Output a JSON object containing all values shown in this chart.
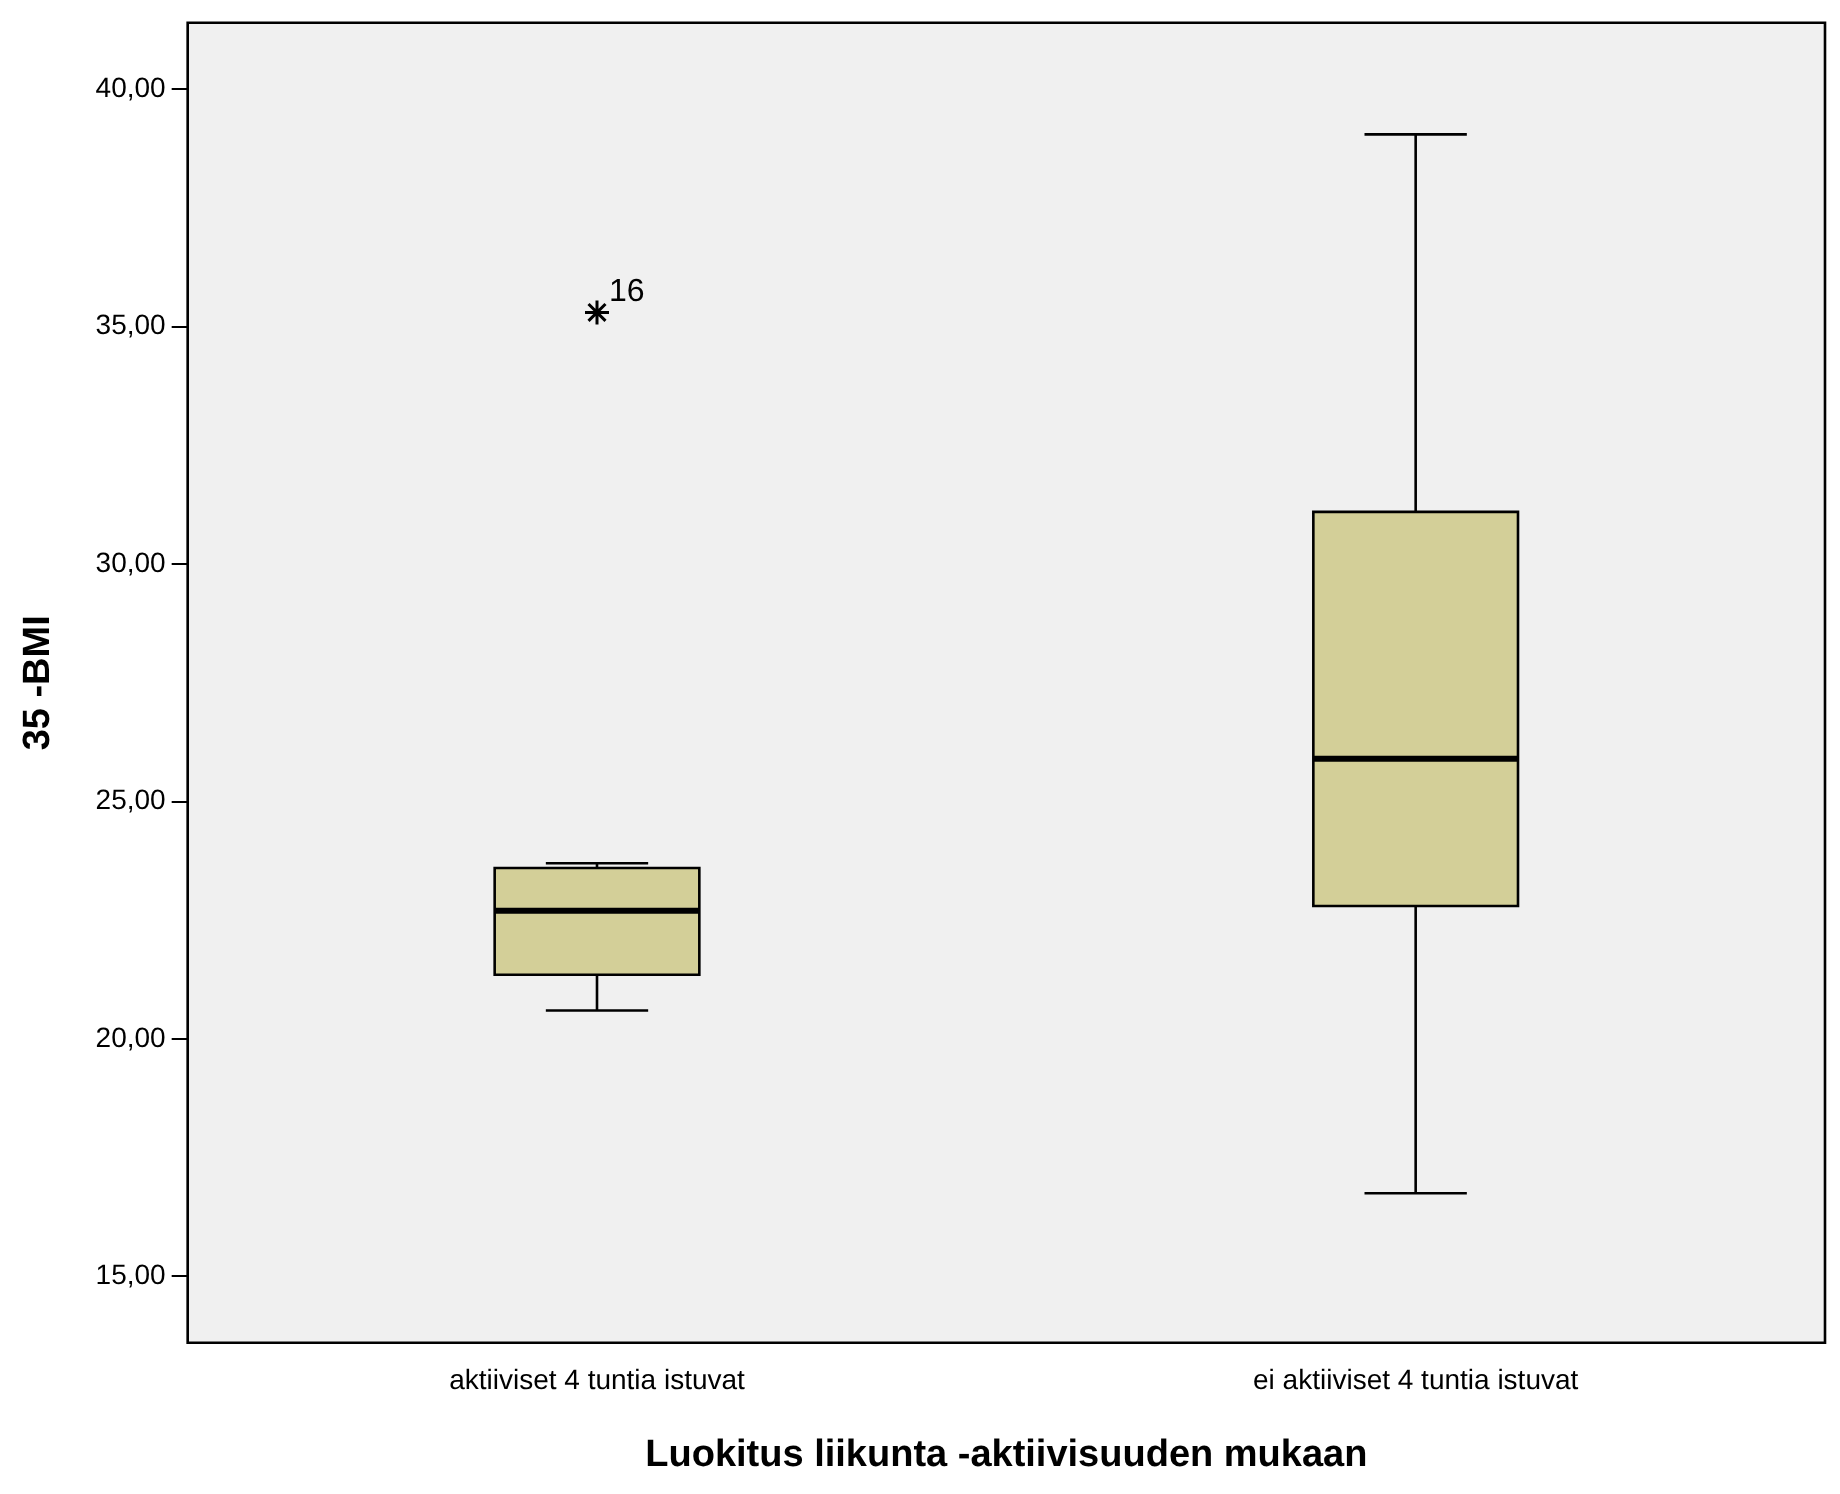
{
  "chart_data": {
    "type": "box",
    "xlabel": "Luokitus liikunta -aktiivisuuden mukaan",
    "ylabel": "35 -BMI",
    "categories": [
      "aktiiviset 4 tuntia istuvat",
      "ei aktiiviset 4 tuntia istuvat"
    ],
    "color": "#d3cf98",
    "marker": "star",
    "grid": false,
    "boxes": [
      {
        "low": 20.6,
        "q1": 21.35,
        "median": 22.7,
        "q3": 23.6,
        "high": 23.7,
        "outliers": [
          35.3
        ]
      },
      {
        "low": 16.75,
        "q1": 22.8,
        "median": 25.9,
        "q3": 31.1,
        "high": 39.05
      }
    ],
    "ylim": [
      13.6,
      41.4
    ],
    "yticks": [
      {
        "value": 15,
        "label": "15,00"
      },
      {
        "value": 20,
        "label": "20,00"
      },
      {
        "value": 25,
        "label": "25,00"
      },
      {
        "value": 30,
        "label": "30,00"
      },
      {
        "value": 35,
        "label": "35,00"
      },
      {
        "value": 40,
        "label": "40,00"
      }
    ],
    "annotations": [
      "16"
    ]
  }
}
